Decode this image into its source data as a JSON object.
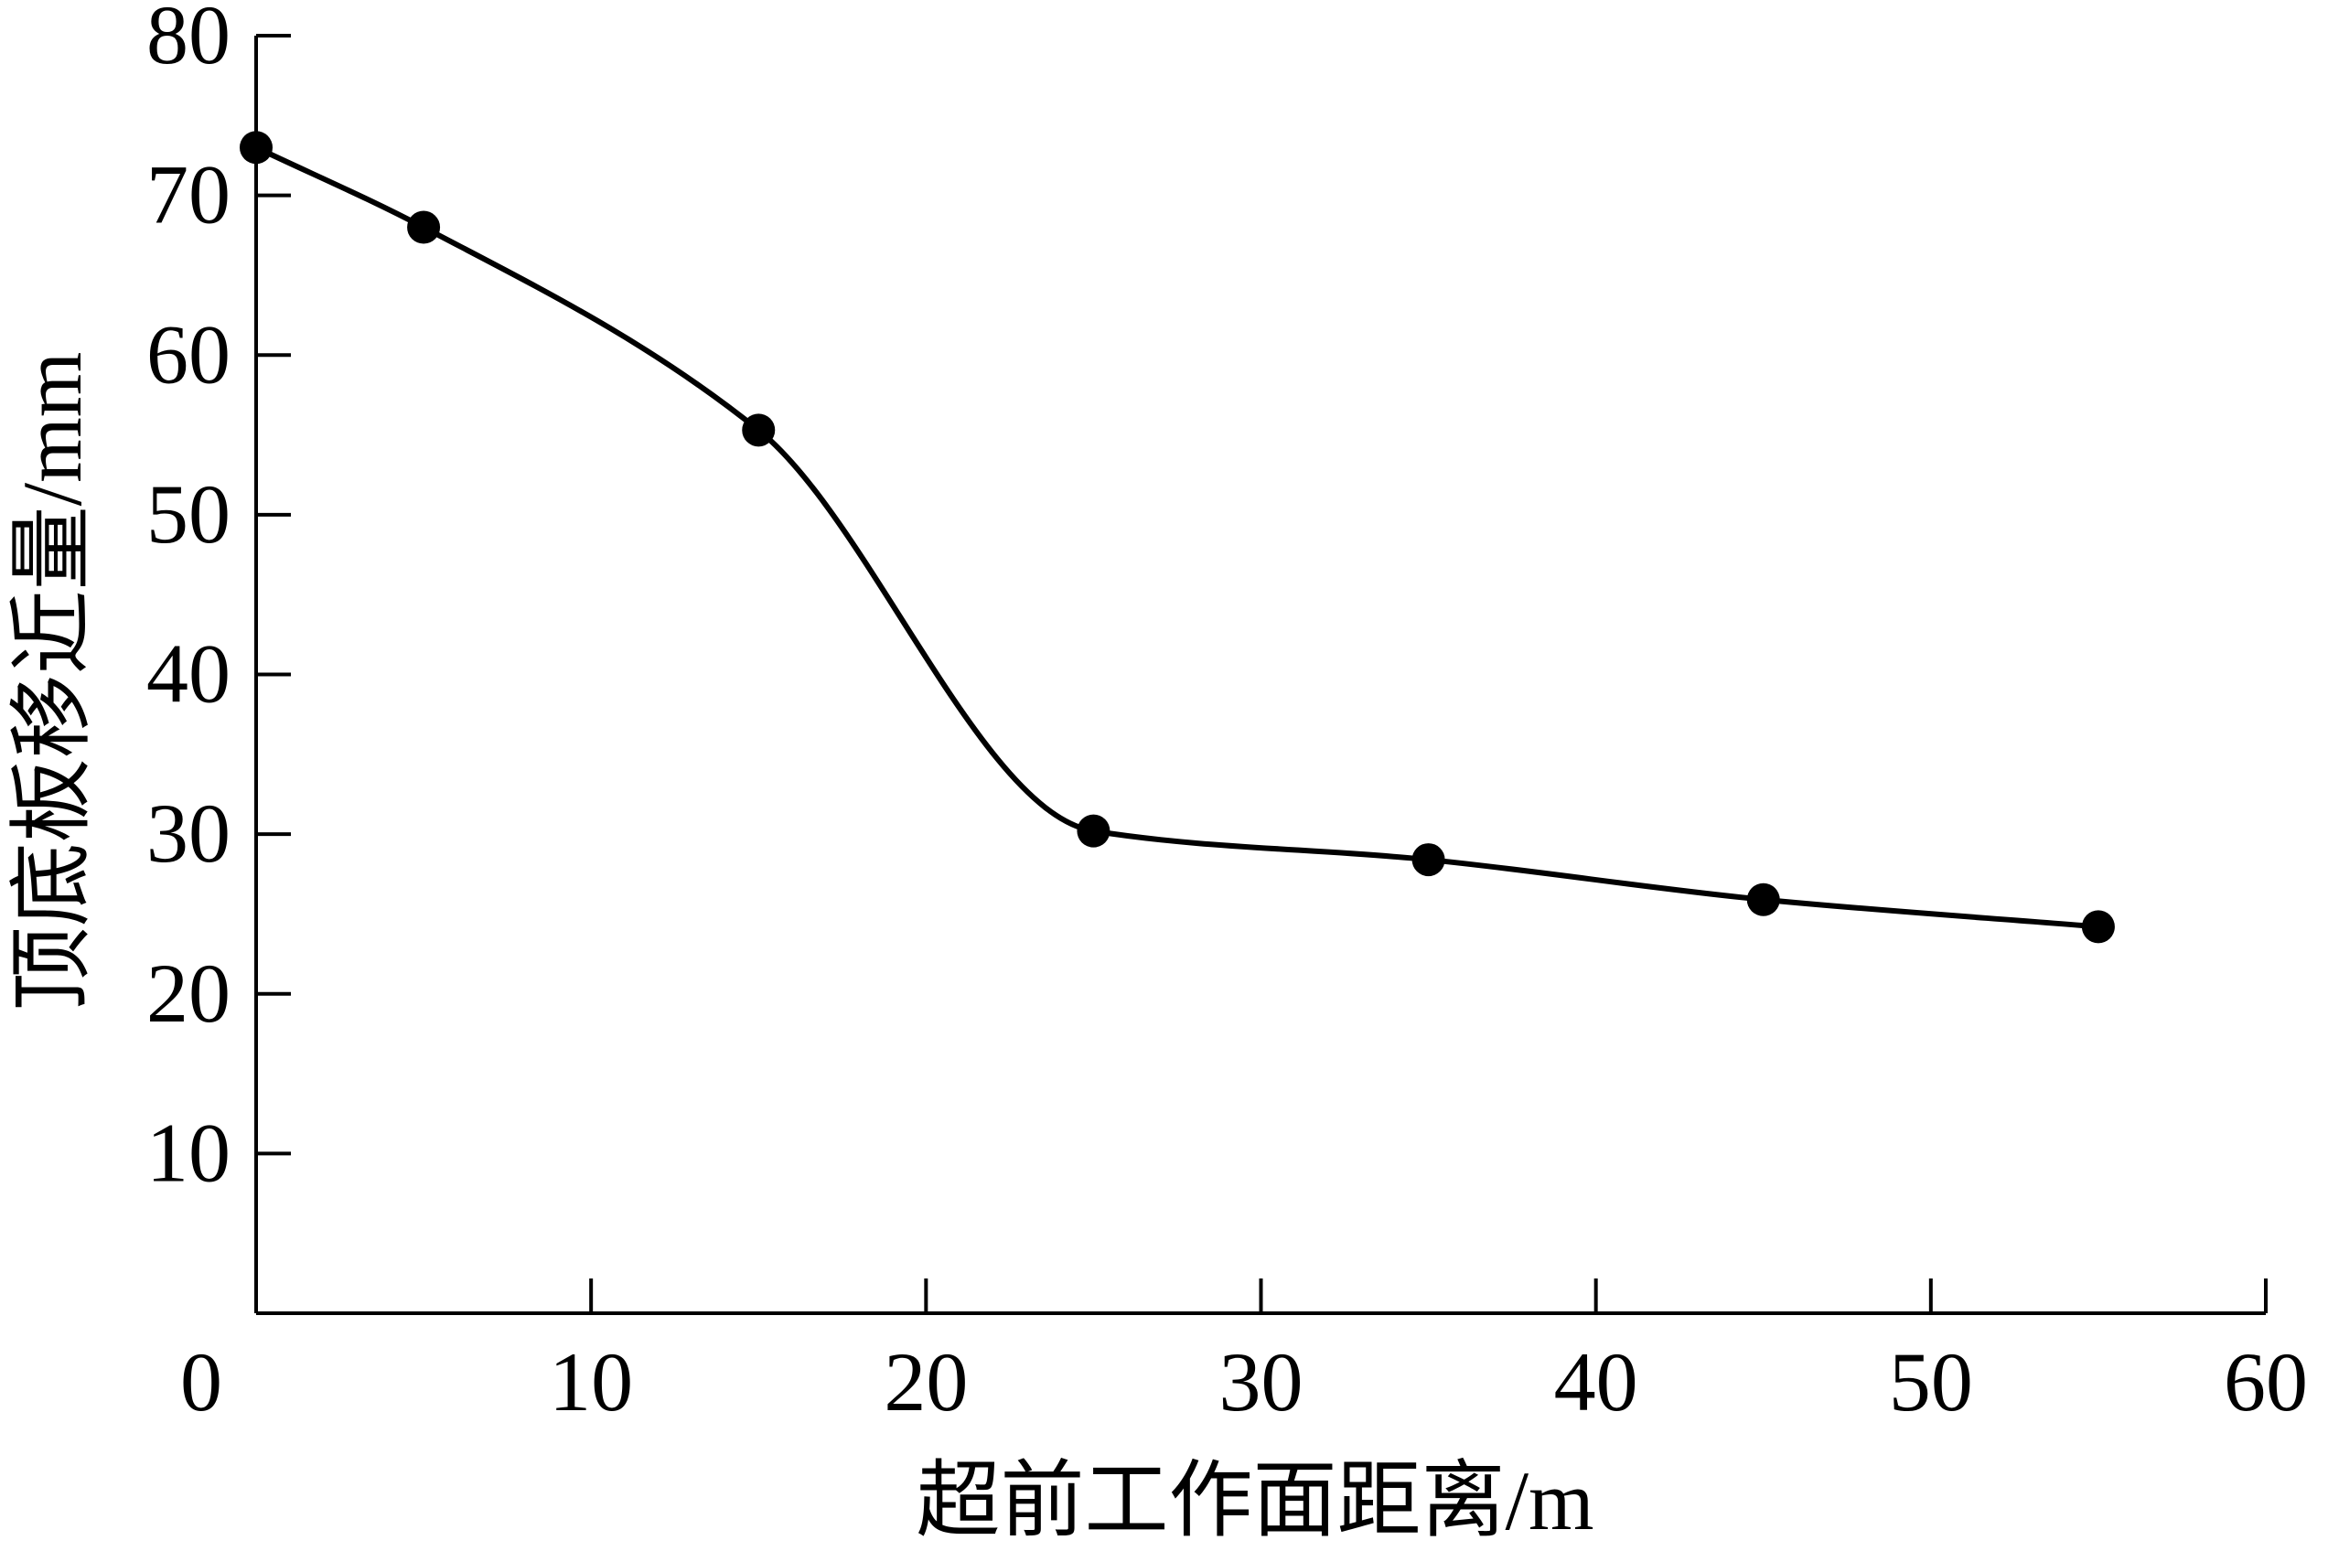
{
  "chart_data": {
    "type": "line",
    "xlabel": "超前工作面距离/m",
    "ylabel": "顶底板移近量/mm",
    "xlim": [
      0,
      60
    ],
    "ylim": [
      0,
      80
    ],
    "x_ticks": [
      "0",
      "10",
      "20",
      "30",
      "40",
      "50",
      "60"
    ],
    "y_ticks": [
      "10",
      "20",
      "30",
      "40",
      "50",
      "60",
      "70",
      "80"
    ],
    "grid": false,
    "smooth": true,
    "marker": "filled-circle",
    "colors": {
      "line": "#000000",
      "marker": "#000000"
    },
    "series": [
      {
        "x": [
          0,
          5,
          15,
          25,
          35,
          45,
          55
        ],
        "y": [
          73,
          68,
          55.3,
          30.2,
          28.4,
          25.9,
          24.2
        ]
      }
    ]
  }
}
